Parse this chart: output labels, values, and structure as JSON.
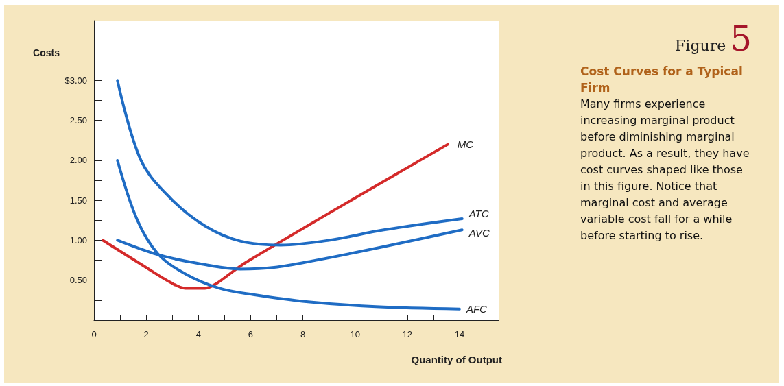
{
  "chart_data": {
    "type": "line",
    "title": "Cost Curves for a Typical Firm",
    "xlabel": "Quantity of Output",
    "ylabel": "Costs",
    "annotations": [
      "Figure",
      "5",
      "Many firms experience increasing marginal product before diminishing marginal product. As a result, they have cost curves shaped like those in this figure. Notice that marginal cost and average variable cost fall for a while before starting to rise."
    ],
    "xlim": [
      0,
      15.5
    ],
    "ylim": [
      0,
      3.75
    ],
    "xticks": [
      0,
      {
        "value": 1,
        "label": null
      },
      2,
      {
        "value": 3,
        "label": null
      },
      4,
      {
        "value": 5,
        "label": null
      },
      6,
      {
        "value": 7,
        "label": null
      },
      8,
      {
        "value": 9,
        "label": null
      },
      10,
      {
        "value": 11,
        "label": null
      },
      12,
      {
        "value": 13,
        "label": null
      },
      14
    ],
    "yticks": [
      {
        "value": 0,
        "label": null
      },
      {
        "value": 0.25,
        "label": null
      },
      {
        "value": 0.5,
        "label": "0.50"
      },
      {
        "value": 0.75,
        "label": null
      },
      {
        "value": 1,
        "label": "1.00"
      },
      {
        "value": 1.25,
        "label": null
      },
      {
        "value": 1.5,
        "label": "1.50"
      },
      {
        "value": 1.75,
        "label": null
      },
      {
        "value": 2,
        "label": "2.00"
      },
      {
        "value": 2.25,
        "label": null
      },
      {
        "value": 2.5,
        "label": "2.50"
      },
      {
        "value": 2.75,
        "label": null
      },
      {
        "value": 3,
        "label": "$3.00"
      }
    ],
    "grid": false,
    "legend": false,
    "marker": "none",
    "line_style": "solid",
    "series": [
      {
        "name": "MC",
        "color": "#d42a2a",
        "x": [
          0.34,
          1.9,
          2.95,
          3.5,
          4.25,
          4.65,
          5.85,
          13.55
        ],
        "values": [
          1.0,
          0.68,
          0.47,
          0.4,
          0.4,
          0.45,
          0.73,
          2.2
        ]
      },
      {
        "name": "ATC",
        "color": "#1f6cc4",
        "x": [
          0.9,
          1.8,
          2.95,
          4.25,
          5.6,
          7.15,
          9.0,
          11.1,
          14.1
        ],
        "values": [
          3.0,
          2.0,
          1.52,
          1.18,
          0.99,
          0.94,
          1.0,
          1.13,
          1.27
        ]
      },
      {
        "name": "AVC",
        "color": "#1f6cc4",
        "x": [
          0.9,
          2.45,
          4.0,
          5.6,
          6.9,
          8.5,
          11.1,
          14.1
        ],
        "values": [
          1.0,
          0.82,
          0.71,
          0.64,
          0.66,
          0.75,
          0.92,
          1.13
        ]
      },
      {
        "name": "AFC",
        "color": "#1f6cc4",
        "x": [
          0.9,
          1.65,
          2.45,
          3.5,
          4.8,
          6.1,
          8.2,
          10.8,
          14.0
        ],
        "values": [
          2.0,
          1.26,
          0.83,
          0.58,
          0.4,
          0.32,
          0.23,
          0.17,
          0.14
        ]
      }
    ]
  }
}
